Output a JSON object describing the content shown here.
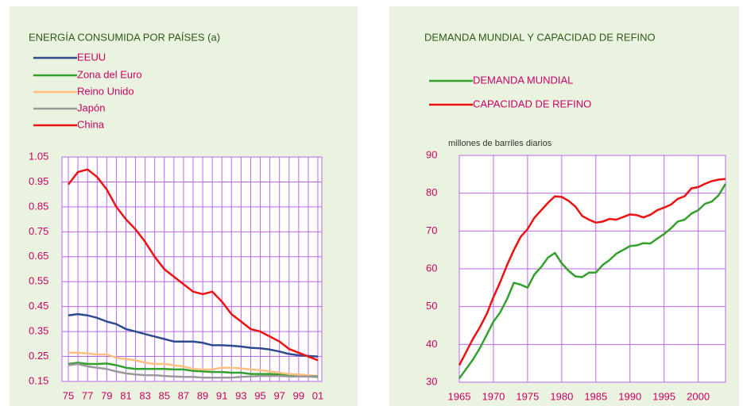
{
  "chart_data": [
    {
      "type": "line",
      "title": "ENERGÍA CONSUMIDA POR PAÍSES (a)",
      "categories": [
        "75",
        null,
        "77",
        null,
        "79",
        null,
        "81",
        null,
        "83",
        null,
        "85",
        null,
        "87",
        null,
        "89",
        null,
        "91",
        null,
        "93",
        null,
        "95",
        null,
        "97",
        null,
        "99",
        null,
        "01"
      ],
      "series": [
        {
          "name": "EEUU",
          "color": "#2e4a8f",
          "values": [
            0.415,
            0.42,
            0.415,
            0.405,
            0.39,
            0.38,
            0.36,
            0.35,
            0.34,
            0.33,
            0.32,
            0.31,
            0.31,
            0.31,
            0.305,
            0.295,
            0.295,
            0.293,
            0.29,
            0.285,
            0.283,
            0.278,
            0.27,
            0.26,
            0.255,
            0.252,
            0.25
          ]
        },
        {
          "name": "Zona del Euro",
          "color": "#33a02c",
          "values": [
            0.22,
            0.225,
            0.22,
            0.22,
            0.222,
            0.215,
            0.205,
            0.2,
            0.2,
            0.2,
            0.2,
            0.198,
            0.198,
            0.192,
            0.19,
            0.188,
            0.188,
            0.185,
            0.185,
            0.18,
            0.18,
            0.18,
            0.178,
            0.175,
            0.172,
            0.17,
            0.168
          ]
        },
        {
          "name": "Reino Unido",
          "color": "#ffc080",
          "values": [
            0.265,
            0.265,
            0.262,
            0.258,
            0.258,
            0.245,
            0.24,
            0.235,
            0.225,
            0.22,
            0.22,
            0.215,
            0.21,
            0.2,
            0.198,
            0.198,
            0.205,
            0.205,
            0.202,
            0.198,
            0.195,
            0.19,
            0.185,
            0.18,
            0.178,
            0.175,
            0.172
          ]
        },
        {
          "name": "Japón",
          "color": "#999999",
          "values": [
            0.215,
            0.22,
            0.21,
            0.205,
            0.2,
            0.19,
            0.182,
            0.178,
            0.175,
            0.175,
            0.172,
            0.17,
            0.168,
            0.168,
            0.165,
            0.165,
            0.165,
            0.165,
            0.168,
            0.17,
            0.172,
            0.172,
            0.172,
            0.17,
            0.17,
            0.17,
            0.172
          ]
        },
        {
          "name": "China",
          "color": "#ee1111",
          "values": [
            0.94,
            0.99,
            1.0,
            0.97,
            0.92,
            0.85,
            0.8,
            0.76,
            0.71,
            0.65,
            0.6,
            0.57,
            0.54,
            0.51,
            0.5,
            0.51,
            0.47,
            0.42,
            0.39,
            0.36,
            0.35,
            0.33,
            0.31,
            0.28,
            0.265,
            0.25,
            0.235
          ]
        }
      ],
      "ylim": [
        0.15,
        1.05
      ],
      "yticks": [
        0.15,
        0.25,
        0.35,
        0.45,
        0.55,
        0.65,
        0.75,
        0.85,
        0.95,
        1.05
      ],
      "grid": true
    },
    {
      "type": "line",
      "title": "DEMANDA MUNDIAL Y CAPACIDAD DE REFINO",
      "y_label": "millones de barriles diarios",
      "x": [
        1965,
        1966,
        1967,
        1968,
        1969,
        1970,
        1971,
        1972,
        1973,
        1974,
        1975,
        1976,
        1977,
        1978,
        1979,
        1980,
        1981,
        1982,
        1983,
        1984,
        1985,
        1986,
        1987,
        1988,
        1989,
        1990,
        1991,
        1992,
        1993,
        1994,
        1995,
        1996,
        1997,
        1998,
        1999,
        2000,
        2001,
        2002,
        2003,
        2004
      ],
      "series": [
        {
          "name": "DEMANDA MUNDIAL",
          "color": "#33a02c",
          "values": [
            31,
            33.5,
            36,
            39,
            42.5,
            46,
            48.5,
            52,
            56.3,
            55.8,
            55,
            58.5,
            60.5,
            63,
            64.2,
            61.5,
            59.5,
            58,
            57.8,
            59,
            59,
            61,
            62.3,
            64,
            65,
            66,
            66.2,
            66.8,
            66.7,
            68,
            69.2,
            70.7,
            72.5,
            73,
            74.6,
            75.5,
            77.2,
            77.8,
            79.5,
            82.5
          ]
        },
        {
          "name": "CAPACIDAD DE REFINO",
          "color": "#ee1111",
          "values": [
            34.5,
            38,
            41.5,
            44.5,
            48,
            52.5,
            56.5,
            61,
            65,
            68.5,
            70.5,
            73.5,
            75.5,
            77.5,
            79.2,
            79,
            78,
            76.5,
            74,
            73,
            72.2,
            72.5,
            73.2,
            73,
            73.7,
            74.4,
            74.2,
            73.6,
            74.3,
            75.5,
            76.2,
            77,
            78.5,
            79.2,
            81.3,
            81.6,
            82.5,
            83.2,
            83.6,
            83.8
          ]
        }
      ],
      "xlim": [
        1965,
        2004
      ],
      "xticks": [
        1965,
        1970,
        1975,
        1980,
        1985,
        1990,
        1995,
        2000
      ],
      "ylim": [
        30,
        90
      ],
      "yticks": [
        30,
        40,
        50,
        60,
        70,
        80,
        90
      ],
      "grid": true
    }
  ]
}
